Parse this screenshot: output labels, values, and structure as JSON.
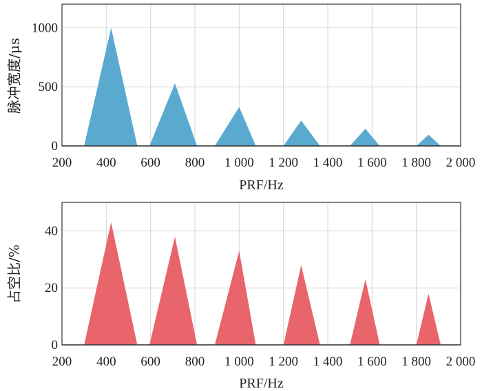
{
  "chart_data": [
    {
      "type": "area",
      "xlabel": "PRF/Hz",
      "ylabel": "脉冲宽度/μs",
      "xlim": [
        200,
        2000
      ],
      "ylim": [
        0,
        1200
      ],
      "xticks": [
        200,
        400,
        600,
        800,
        1000,
        1200,
        1400,
        1600,
        1800,
        2000
      ],
      "xtick_labels": [
        "200",
        "400",
        "600",
        "800",
        "1 000",
        "1 200",
        "1 400",
        "1 600",
        "1 800",
        "2 000"
      ],
      "yticks": [
        0,
        500,
        1000
      ],
      "ytick_labels": [
        "0",
        "500",
        "1000"
      ],
      "grid": true,
      "color": "#5aaad0",
      "peaks": [
        {
          "x_start": 300,
          "x_peak": 422,
          "x_end": 540,
          "y_peak": 1000
        },
        {
          "x_start": 595,
          "x_peak": 710,
          "x_end": 810,
          "y_peak": 530
        },
        {
          "x_start": 890,
          "x_peak": 1000,
          "x_end": 1075,
          "y_peak": 330
        },
        {
          "x_start": 1200,
          "x_peak": 1280,
          "x_end": 1365,
          "y_peak": 215
        },
        {
          "x_start": 1500,
          "x_peak": 1570,
          "x_end": 1635,
          "y_peak": 145
        },
        {
          "x_start": 1800,
          "x_peak": 1855,
          "x_end": 1910,
          "y_peak": 95
        }
      ]
    },
    {
      "type": "area",
      "xlabel": "PRF/Hz",
      "ylabel": "占空比/%",
      "xlim": [
        200,
        2000
      ],
      "ylim": [
        0,
        50
      ],
      "xticks": [
        200,
        400,
        600,
        800,
        1000,
        1200,
        1400,
        1600,
        1800,
        2000
      ],
      "xtick_labels": [
        "200",
        "400",
        "600",
        "800",
        "1 000",
        "1 200",
        "1 400",
        "1 600",
        "1 800",
        "2 000"
      ],
      "yticks": [
        0,
        20,
        40
      ],
      "ytick_labels": [
        "0",
        "20",
        "40"
      ],
      "grid": true,
      "color": "#e8666b",
      "peaks": [
        {
          "x_start": 300,
          "x_peak": 422,
          "x_end": 540,
          "y_peak": 43
        },
        {
          "x_start": 595,
          "x_peak": 710,
          "x_end": 810,
          "y_peak": 38
        },
        {
          "x_start": 890,
          "x_peak": 1000,
          "x_end": 1075,
          "y_peak": 33
        },
        {
          "x_start": 1200,
          "x_peak": 1280,
          "x_end": 1365,
          "y_peak": 28
        },
        {
          "x_start": 1500,
          "x_peak": 1570,
          "x_end": 1635,
          "y_peak": 23
        },
        {
          "x_start": 1800,
          "x_peak": 1855,
          "x_end": 1910,
          "y_peak": 18
        }
      ]
    }
  ]
}
